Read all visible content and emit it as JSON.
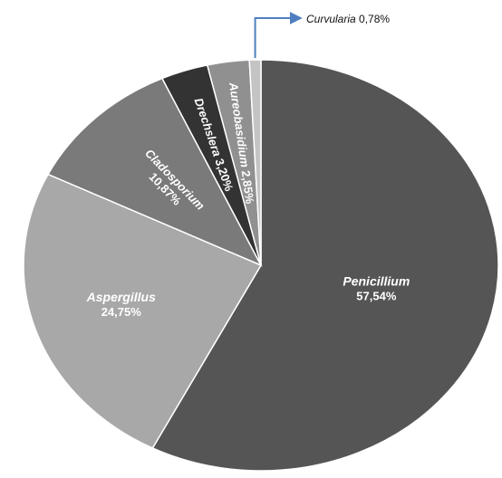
{
  "chart_data": {
    "type": "pie",
    "start_angle_deg": 0,
    "direction": "clockwise",
    "slices": [
      {
        "name": "Penicillium",
        "value": 57.54,
        "value_label": "57,54%",
        "color": "#555555"
      },
      {
        "name": "Aspergillus",
        "value": 24.75,
        "value_label": "24,75%",
        "color": "#a8a8a8"
      },
      {
        "name": "Cladosporium",
        "value": 10.87,
        "value_label": "10,87%",
        "color": "#7a7a7a"
      },
      {
        "name": "Drechslera",
        "value": 3.2,
        "value_label": "3,20%",
        "color": "#333333"
      },
      {
        "name": "Aureobasidium",
        "value": 2.85,
        "value_label": "2,85%",
        "color": "#909090"
      },
      {
        "name": "Curvularia",
        "value": 0.78,
        "value_label": "0,78%",
        "color": "#c4c4c4"
      }
    ],
    "title": "",
    "legend": "none",
    "callout_color": "#4f7fc0"
  }
}
